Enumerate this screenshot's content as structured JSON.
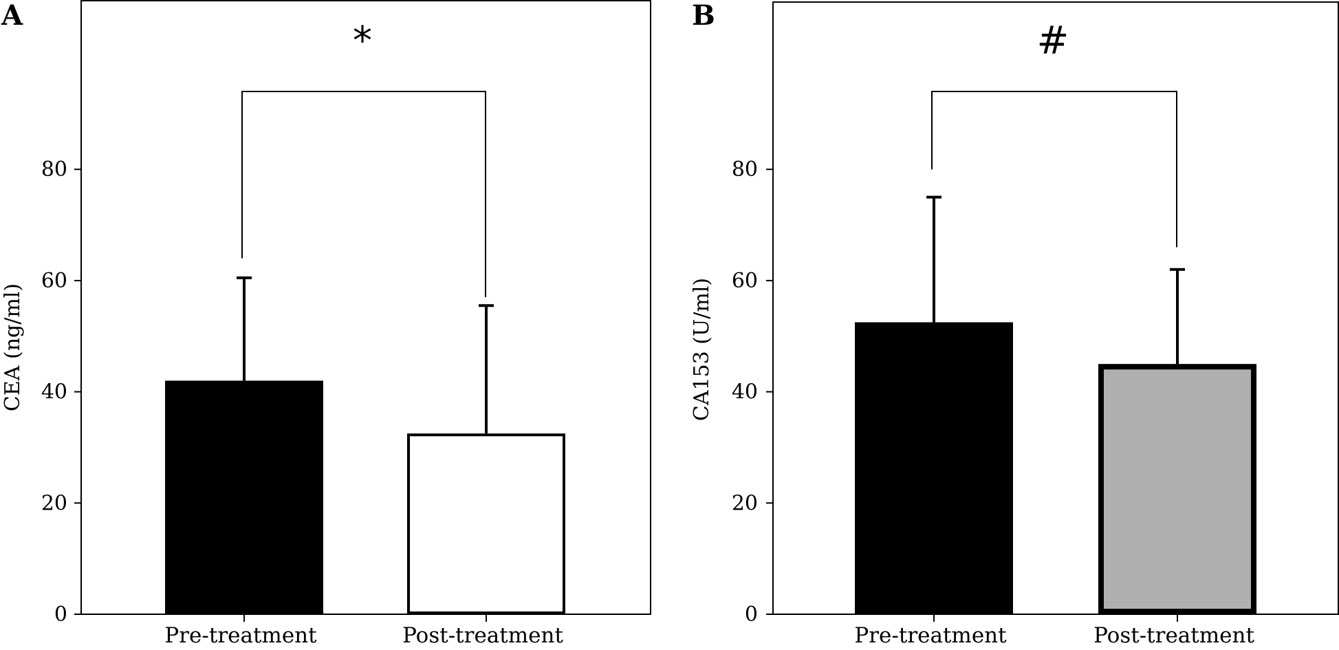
{
  "chart_data": [
    {
      "type": "bar",
      "panel": "A",
      "ylabel": "CEA (ng/ml)",
      "xlabel": "",
      "title": "",
      "categories": [
        "Pre-treatment",
        "Post-treatment"
      ],
      "values": [
        42,
        32.5
      ],
      "errors": [
        18.5,
        23
      ],
      "bar_fill": [
        "#000000",
        "#ffffff"
      ],
      "ylim": [
        0,
        110
      ],
      "yticks": [
        0,
        20,
        40,
        60,
        80
      ],
      "significance": {
        "symbol": "*",
        "bracket_top": 94,
        "left_end": 64,
        "right_end": 57
      },
      "grid": false
    },
    {
      "type": "bar",
      "panel": "B",
      "ylabel": "CA153 (U/ml)",
      "xlabel": "",
      "title": "",
      "categories": [
        "Pre-treatment",
        "Post-treatment"
      ],
      "values": [
        52.5,
        45
      ],
      "errors": [
        22.5,
        17
      ],
      "bar_fill": [
        "#000000",
        "#b0b0b0"
      ],
      "ylim": [
        0,
        110
      ],
      "yticks": [
        0,
        20,
        40,
        60,
        80
      ],
      "significance": {
        "symbol": "#",
        "bracket_top": 94,
        "left_end": 80,
        "right_end": 66
      },
      "grid": false
    }
  ]
}
